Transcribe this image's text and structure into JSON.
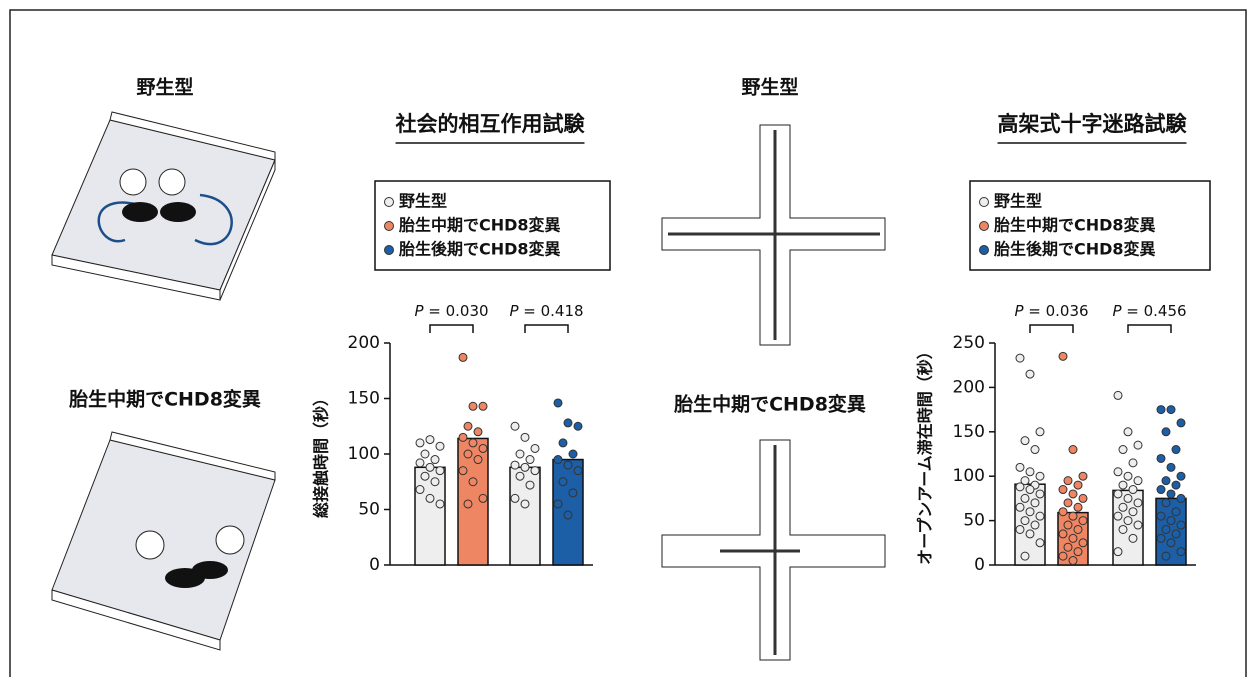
{
  "illustrations": {
    "arena_top_label": "野生型",
    "arena_bottom_label": "胎生中期でCHD8変異",
    "maze_top_label": "野生型",
    "maze_bottom_label": "胎生中期でCHD8変異"
  },
  "chart_data": [
    {
      "type": "bar",
      "title": "社会的相互作用試験",
      "ylabel": "総接触時間（秒）",
      "legend": [
        {
          "name": "野生型",
          "color": "#eeeeee"
        },
        {
          "name": "胎生中期でCHD8変異",
          "color": "#ef8663"
        },
        {
          "name": "胎生後期でCHD8変異",
          "color": "#1c5fa6"
        }
      ],
      "values": [
        88,
        114,
        88,
        95
      ],
      "colors": [
        "#eeeeee",
        "#ef8663",
        "#eeeeee",
        "#1c5fa6"
      ],
      "points": [
        [
          110,
          113,
          107,
          100,
          95,
          92,
          88,
          85,
          80,
          75,
          68,
          60,
          55
        ],
        [
          187,
          143,
          143,
          125,
          120,
          115,
          110,
          105,
          100,
          95,
          85,
          75,
          60,
          55
        ],
        [
          125,
          115,
          105,
          100,
          95,
          90,
          88,
          85,
          80,
          72,
          60,
          55
        ],
        [
          146,
          128,
          125,
          110,
          100,
          95,
          90,
          85,
          75,
          65,
          55,
          45
        ]
      ],
      "comparisons": [
        {
          "symbol": "P",
          "label": "= 0.030"
        },
        {
          "symbol": "P",
          "label": "= 0.418"
        }
      ],
      "ylim": [
        0,
        200
      ],
      "yticks": [
        0,
        50,
        100,
        150,
        200
      ]
    },
    {
      "type": "bar",
      "title": "高架式十字迷路試験",
      "ylabel": "オープンアーム滞在時間（秒）",
      "legend": [
        {
          "name": "野生型",
          "color": "#eeeeee"
        },
        {
          "name": "胎生中期でCHD8変異",
          "color": "#ef8663"
        },
        {
          "name": "胎生後期でCHD8変異",
          "color": "#1c5fa6"
        }
      ],
      "values": [
        91,
        59,
        84,
        75
      ],
      "colors": [
        "#eeeeee",
        "#ef8663",
        "#eeeeee",
        "#1c5fa6"
      ],
      "points": [
        [
          233,
          215,
          150,
          140,
          130,
          110,
          105,
          100,
          95,
          90,
          88,
          85,
          80,
          75,
          70,
          65,
          60,
          55,
          50,
          45,
          40,
          35,
          25,
          10
        ],
        [
          235,
          130,
          100,
          95,
          90,
          85,
          80,
          75,
          70,
          65,
          60,
          55,
          50,
          45,
          40,
          35,
          30,
          25,
          20,
          15,
          10,
          5
        ],
        [
          191,
          150,
          135,
          130,
          115,
          105,
          100,
          95,
          90,
          85,
          80,
          75,
          70,
          65,
          60,
          55,
          50,
          45,
          40,
          30,
          15
        ],
        [
          175,
          175,
          160,
          150,
          130,
          120,
          110,
          100,
          95,
          90,
          85,
          80,
          75,
          70,
          60,
          55,
          50,
          45,
          40,
          35,
          30,
          25,
          15,
          10
        ]
      ],
      "comparisons": [
        {
          "symbol": "P",
          "label": "= 0.036"
        },
        {
          "symbol": "P",
          "label": "= 0.456"
        }
      ],
      "ylim": [
        0,
        250
      ],
      "yticks": [
        0,
        50,
        100,
        150,
        200,
        250
      ]
    }
  ]
}
